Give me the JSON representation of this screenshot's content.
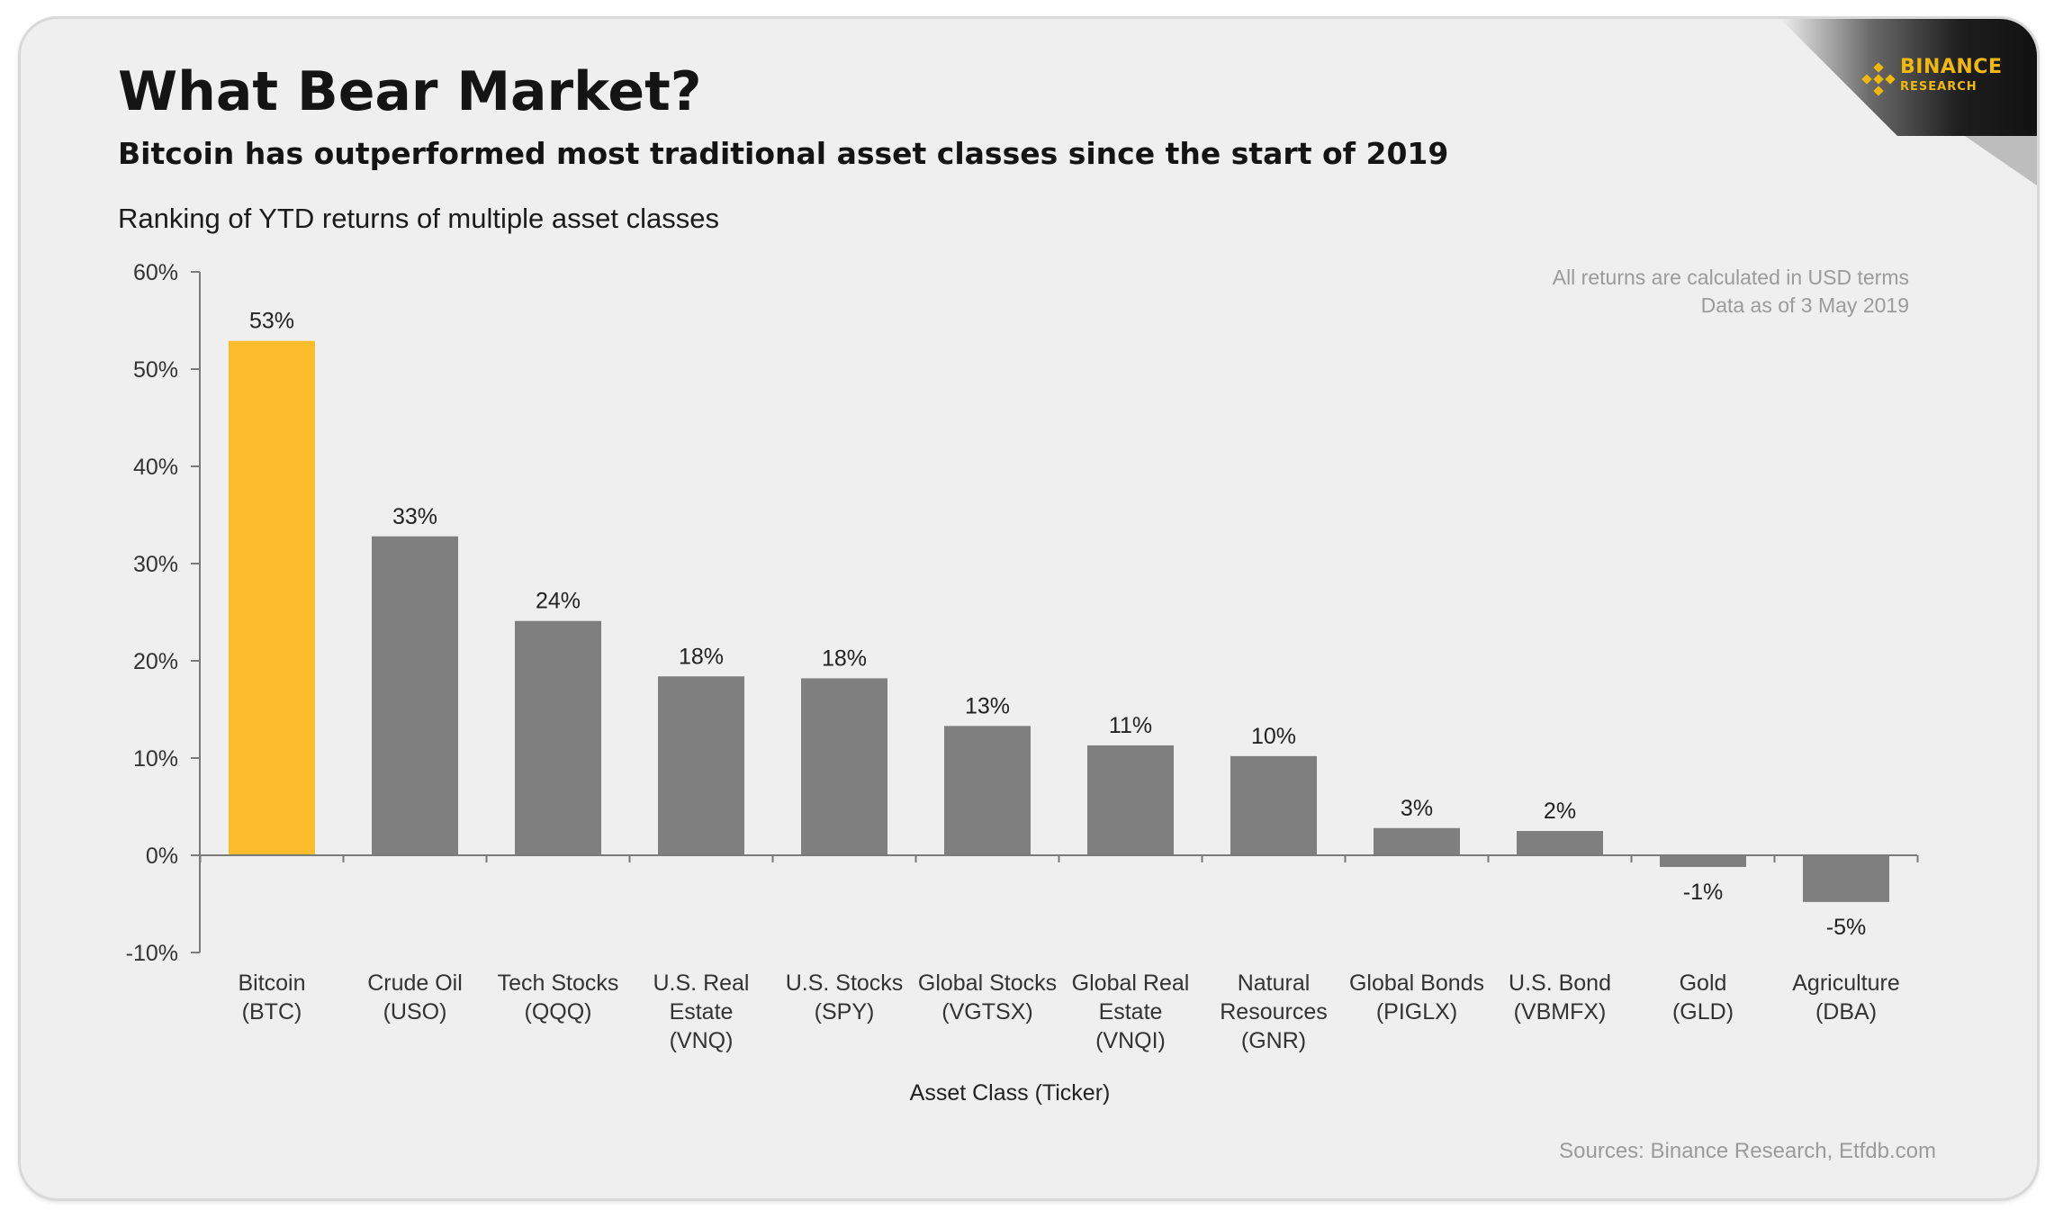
{
  "brand": {
    "name": "BINANCE",
    "sub": "RESEARCH",
    "color": "#f0b90b",
    "icon": "binance-diamond-icon"
  },
  "header": {
    "title": "What Bear Market?",
    "subtitle": "Bitcoin has outperformed most traditional asset classes since the start of 2019",
    "caption": "Ranking of YTD returns of multiple asset classes"
  },
  "notes": {
    "line1": "All returns are calculated in USD terms",
    "line2": "Data as of 3 May 2019"
  },
  "footer": {
    "sources": "Sources: Binance Research, Etfdb.com"
  },
  "colors": {
    "highlight": "#fbbd2e",
    "bar": "#7f7f7f",
    "background": "#efefef"
  },
  "chart_data": {
    "type": "bar",
    "title": "Ranking of YTD returns of multiple asset classes",
    "xlabel": "Asset Class (Ticker)",
    "ylabel": "",
    "ylim": [
      -10,
      60
    ],
    "yticks": [
      60,
      50,
      40,
      30,
      20,
      10,
      0,
      -10
    ],
    "ytick_labels": [
      "60%",
      "50%",
      "40%",
      "30%",
      "20%",
      "10%",
      "0%",
      "-10%"
    ],
    "grid": false,
    "categories": [
      [
        "Bitcoin",
        "(BTC)"
      ],
      [
        "Crude Oil",
        "(USO)"
      ],
      [
        "Tech Stocks",
        "(QQQ)"
      ],
      [
        "U.S. Real",
        "Estate",
        "(VNQ)"
      ],
      [
        "U.S. Stocks",
        "(SPY)"
      ],
      [
        "Global Stocks",
        "(VGTSX)"
      ],
      [
        "Global Real",
        "Estate",
        "(VNQI)"
      ],
      [
        "Natural",
        "Resources",
        "(GNR)"
      ],
      [
        "Global Bonds",
        "(PIGLX)"
      ],
      [
        "U.S. Bond",
        "(VBMFX)"
      ],
      [
        "Gold",
        "(GLD)"
      ],
      [
        "Agriculture",
        "(DBA)"
      ]
    ],
    "values": [
      52.9,
      32.8,
      24.1,
      18.4,
      18.2,
      13.3,
      11.3,
      10.2,
      2.8,
      2.5,
      -1.2,
      -4.8
    ],
    "value_labels": [
      "53%",
      "33%",
      "24%",
      "18%",
      "18%",
      "13%",
      "11%",
      "10%",
      "3%",
      "2%",
      "-1%",
      "-5%"
    ],
    "highlight_index": 0
  }
}
